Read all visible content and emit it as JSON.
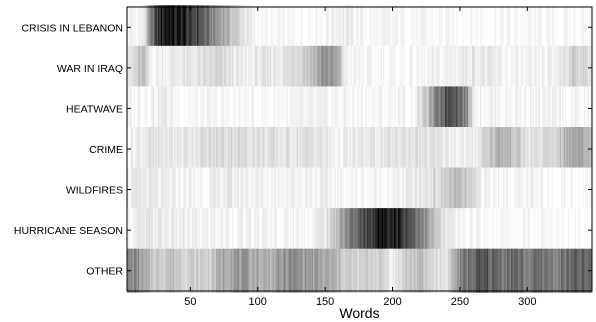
{
  "chart_data": {
    "type": "heatmap",
    "title": "",
    "xlabel": "Words",
    "ylabel": "",
    "xlim": [
      3,
      348
    ],
    "x_ticks": [
      50,
      100,
      150,
      200,
      250,
      300
    ],
    "rows": [
      {
        "label": "CRISIS IN LEBANON",
        "intensity": [
          [
            3,
            0.04
          ],
          [
            15,
            0.05
          ],
          [
            25,
            0.75
          ],
          [
            30,
            0.9
          ],
          [
            35,
            0.95
          ],
          [
            40,
            0.85
          ],
          [
            45,
            0.9
          ],
          [
            50,
            0.7
          ],
          [
            55,
            0.75
          ],
          [
            60,
            0.6
          ],
          [
            65,
            0.5
          ],
          [
            70,
            0.4
          ],
          [
            75,
            0.35
          ],
          [
            80,
            0.25
          ],
          [
            85,
            0.18
          ],
          [
            90,
            0.12
          ],
          [
            95,
            0.05
          ],
          [
            100,
            0.02
          ],
          [
            130,
            0.02
          ],
          [
            150,
            0.04
          ],
          [
            160,
            0.08
          ],
          [
            170,
            0.06
          ],
          [
            180,
            0.03
          ],
          [
            220,
            0.03
          ],
          [
            240,
            0.02
          ],
          [
            300,
            0.02
          ],
          [
            348,
            0.02
          ]
        ]
      },
      {
        "label": "WAR IN IRAQ",
        "intensity": [
          [
            3,
            0.05
          ],
          [
            15,
            0.25
          ],
          [
            20,
            0.05
          ],
          [
            40,
            0.08
          ],
          [
            60,
            0.1
          ],
          [
            70,
            0.15
          ],
          [
            80,
            0.1
          ],
          [
            90,
            0.05
          ],
          [
            100,
            0.08
          ],
          [
            120,
            0.1
          ],
          [
            140,
            0.25
          ],
          [
            150,
            0.45
          ],
          [
            160,
            0.3
          ],
          [
            165,
            0.05
          ],
          [
            180,
            0.03
          ],
          [
            200,
            0.02
          ],
          [
            220,
            0.03
          ],
          [
            240,
            0.05
          ],
          [
            260,
            0.1
          ],
          [
            280,
            0.05
          ],
          [
            300,
            0.03
          ],
          [
            320,
            0.05
          ],
          [
            335,
            0.2
          ],
          [
            348,
            0.1
          ]
        ]
      },
      {
        "label": "HEATWAVE",
        "intensity": [
          [
            3,
            0.03
          ],
          [
            20,
            0.05
          ],
          [
            30,
            0.08
          ],
          [
            40,
            0.03
          ],
          [
            100,
            0.02
          ],
          [
            140,
            0.04
          ],
          [
            180,
            0.03
          ],
          [
            215,
            0.03
          ],
          [
            225,
            0.2
          ],
          [
            235,
            0.55
          ],
          [
            240,
            0.7
          ],
          [
            245,
            0.75
          ],
          [
            250,
            0.6
          ],
          [
            255,
            0.45
          ],
          [
            258,
            0.2
          ],
          [
            262,
            0.05
          ],
          [
            300,
            0.04
          ],
          [
            348,
            0.03
          ]
        ]
      },
      {
        "label": "CRIME",
        "intensity": [
          [
            3,
            0.05
          ],
          [
            20,
            0.1
          ],
          [
            40,
            0.08
          ],
          [
            60,
            0.12
          ],
          [
            80,
            0.15
          ],
          [
            100,
            0.12
          ],
          [
            120,
            0.1
          ],
          [
            140,
            0.12
          ],
          [
            160,
            0.05
          ],
          [
            180,
            0.08
          ],
          [
            200,
            0.1
          ],
          [
            220,
            0.12
          ],
          [
            240,
            0.08
          ],
          [
            260,
            0.05
          ],
          [
            270,
            0.2
          ],
          [
            280,
            0.3
          ],
          [
            290,
            0.25
          ],
          [
            300,
            0.1
          ],
          [
            320,
            0.15
          ],
          [
            330,
            0.3
          ],
          [
            340,
            0.4
          ],
          [
            348,
            0.25
          ]
        ]
      },
      {
        "label": "WILDFIRES",
        "intensity": [
          [
            3,
            0.06
          ],
          [
            15,
            0.08
          ],
          [
            30,
            0.05
          ],
          [
            60,
            0.04
          ],
          [
            80,
            0.08
          ],
          [
            100,
            0.05
          ],
          [
            140,
            0.06
          ],
          [
            160,
            0.03
          ],
          [
            200,
            0.04
          ],
          [
            220,
            0.08
          ],
          [
            235,
            0.15
          ],
          [
            245,
            0.25
          ],
          [
            255,
            0.2
          ],
          [
            262,
            0.1
          ],
          [
            270,
            0.04
          ],
          [
            300,
            0.03
          ],
          [
            348,
            0.02
          ]
        ]
      },
      {
        "label": "HURRICANE SEASON",
        "intensity": [
          [
            3,
            0.05
          ],
          [
            20,
            0.08
          ],
          [
            50,
            0.05
          ],
          [
            100,
            0.04
          ],
          [
            140,
            0.04
          ],
          [
            155,
            0.15
          ],
          [
            165,
            0.45
          ],
          [
            175,
            0.6
          ],
          [
            185,
            0.8
          ],
          [
            190,
            0.9
          ],
          [
            195,
            0.95
          ],
          [
            200,
            0.92
          ],
          [
            205,
            0.85
          ],
          [
            210,
            0.75
          ],
          [
            215,
            0.65
          ],
          [
            220,
            0.55
          ],
          [
            225,
            0.4
          ],
          [
            230,
            0.25
          ],
          [
            238,
            0.1
          ],
          [
            250,
            0.03
          ],
          [
            300,
            0.02
          ],
          [
            348,
            0.02
          ]
        ]
      },
      {
        "label": "OTHER",
        "intensity": [
          [
            3,
            0.45
          ],
          [
            10,
            0.45
          ],
          [
            15,
            0.3
          ],
          [
            25,
            0.2
          ],
          [
            35,
            0.25
          ],
          [
            45,
            0.2
          ],
          [
            55,
            0.18
          ],
          [
            65,
            0.2
          ],
          [
            75,
            0.35
          ],
          [
            85,
            0.4
          ],
          [
            95,
            0.35
          ],
          [
            105,
            0.3
          ],
          [
            115,
            0.35
          ],
          [
            125,
            0.45
          ],
          [
            135,
            0.4
          ],
          [
            145,
            0.35
          ],
          [
            155,
            0.3
          ],
          [
            165,
            0.2
          ],
          [
            175,
            0.15
          ],
          [
            185,
            0.2
          ],
          [
            195,
            0.15
          ],
          [
            200,
            0.05
          ],
          [
            210,
            0.2
          ],
          [
            220,
            0.25
          ],
          [
            230,
            0.15
          ],
          [
            240,
            0.1
          ],
          [
            250,
            0.45
          ],
          [
            260,
            0.6
          ],
          [
            270,
            0.65
          ],
          [
            280,
            0.55
          ],
          [
            290,
            0.6
          ],
          [
            300,
            0.5
          ],
          [
            310,
            0.55
          ],
          [
            320,
            0.5
          ],
          [
            330,
            0.55
          ],
          [
            340,
            0.6
          ],
          [
            348,
            0.55
          ]
        ]
      }
    ]
  }
}
